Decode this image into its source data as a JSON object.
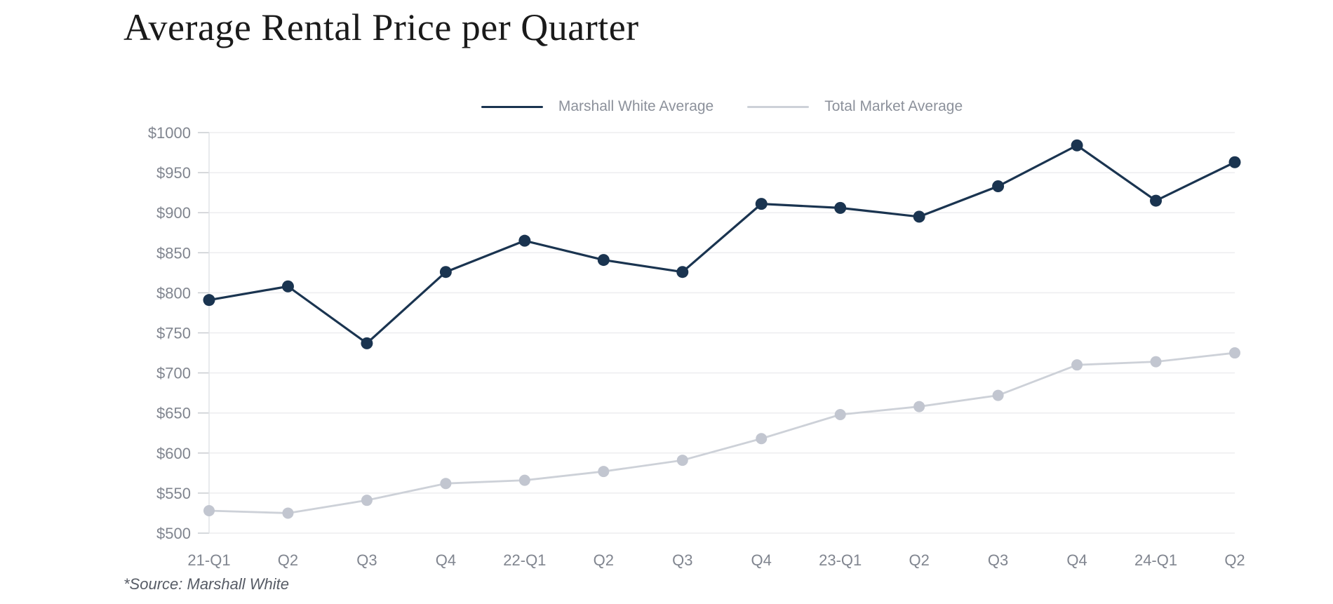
{
  "source_note": "*Source: Marshall White",
  "chart_data": {
    "type": "line",
    "title": "Average Rental Price per Quarter",
    "categories": [
      "21-Q1",
      "Q2",
      "Q3",
      "Q4",
      "22-Q1",
      "Q2",
      "Q3",
      "Q4",
      "23-Q1",
      "Q2",
      "Q3",
      "Q4",
      "24-Q1",
      "Q2"
    ],
    "series": [
      {
        "name": "Marshall White Average",
        "color": "#1a3450",
        "marker_color": "#1a3450",
        "values": [
          791,
          808,
          737,
          826,
          865,
          841,
          826,
          911,
          906,
          895,
          933,
          984,
          915,
          963
        ]
      },
      {
        "name": "Total Market Average",
        "color": "#cdd1d8",
        "marker_color": "#c2c6d0",
        "values": [
          528,
          525,
          541,
          562,
          566,
          577,
          591,
          618,
          648,
          658,
          672,
          710,
          714,
          725
        ]
      }
    ],
    "xlabel": "",
    "ylabel": "",
    "ylabel_prefix": "$",
    "ylim": [
      500,
      1000
    ],
    "ytick_step": 50,
    "grid": "horizontal",
    "legend_position": "top-center"
  }
}
